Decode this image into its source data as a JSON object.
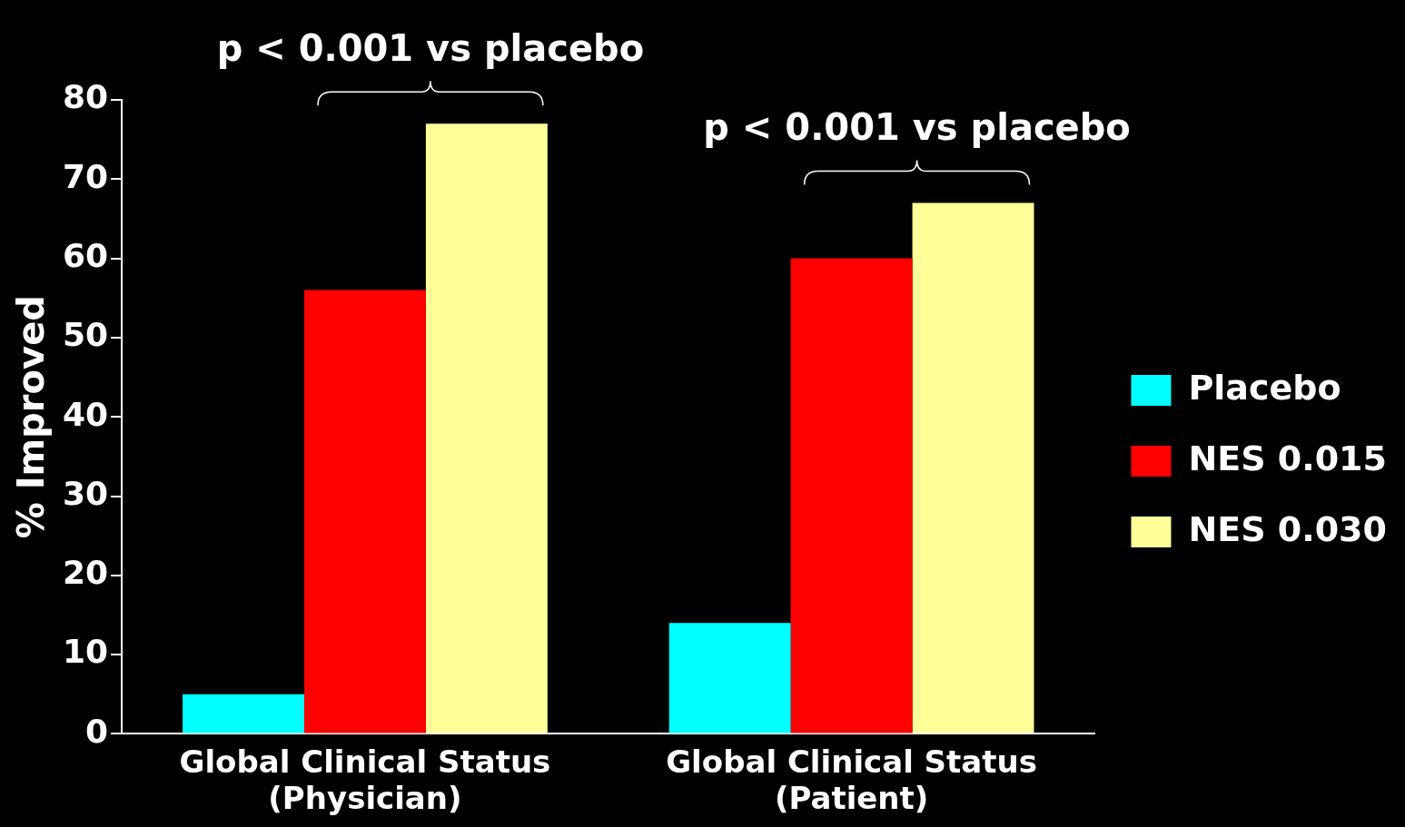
{
  "chart_data": {
    "type": "bar",
    "ylabel": "% Improved",
    "categories": [
      "Global Clinical Status\n(Physician)",
      "Global Clinical Status\n(Patient)"
    ],
    "series": [
      {
        "name": "Placebo",
        "color": "#00ffff",
        "values": [
          5,
          14
        ]
      },
      {
        "name": "NES 0.015",
        "color": "#ff0000",
        "values": [
          56,
          60
        ]
      },
      {
        "name": "NES 0.030",
        "color": "#ffff99",
        "values": [
          77,
          67
        ]
      }
    ],
    "ylim": [
      0,
      80
    ],
    "yticks": [
      0,
      10,
      20,
      30,
      40,
      50,
      60,
      70,
      80
    ],
    "grid": false,
    "legend": "right",
    "annotations": [
      "p < 0.001 vs placebo",
      "p < 0.001 vs placebo"
    ]
  }
}
